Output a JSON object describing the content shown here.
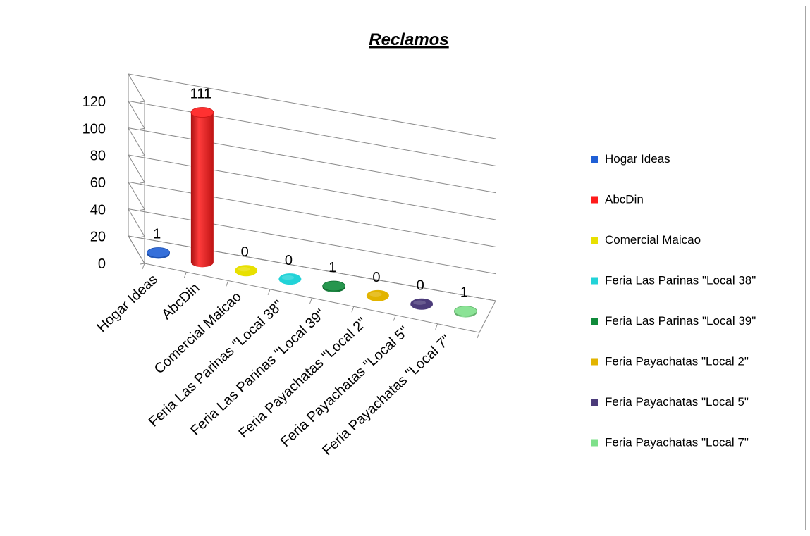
{
  "chart_data": {
    "type": "bar",
    "variant": "3d-cylinder",
    "title": "Reclamos",
    "categories": [
      "Hogar Ideas",
      "AbcDin",
      "Comercial Maicao",
      "Feria Las Parinas \"Local 38\"",
      "Feria Las Parinas \"Local 39\"",
      "Feria Payachatas \"Local 2\"",
      "Feria Payachatas \"Local 5\"",
      "Feria Payachatas \"Local 7\""
    ],
    "values": [
      1,
      111,
      0,
      0,
      1,
      0,
      0,
      1
    ],
    "data_labels": [
      "1",
      "111",
      "0",
      "0",
      "1",
      "0",
      "0",
      "1"
    ],
    "colors": [
      "#1f5fd6",
      "#ff1a1a",
      "#e8e000",
      "#22d3d8",
      "#0f8a3a",
      "#e2b400",
      "#4b3b7a",
      "#7ee08a"
    ],
    "ylim": [
      0,
      120
    ],
    "yticks": [
      "0",
      "20",
      "40",
      "60",
      "80",
      "100",
      "120"
    ],
    "grid": true,
    "legend_position": "right",
    "legend": [
      "Hogar Ideas",
      "AbcDin",
      "Comercial Maicao",
      "Feria Las Parinas \"Local 38\"",
      "Feria Las Parinas \"Local 39\"",
      "Feria Payachatas \"Local 2\"",
      "Feria Payachatas \"Local 5\"",
      "Feria Payachatas \"Local 7\""
    ]
  }
}
